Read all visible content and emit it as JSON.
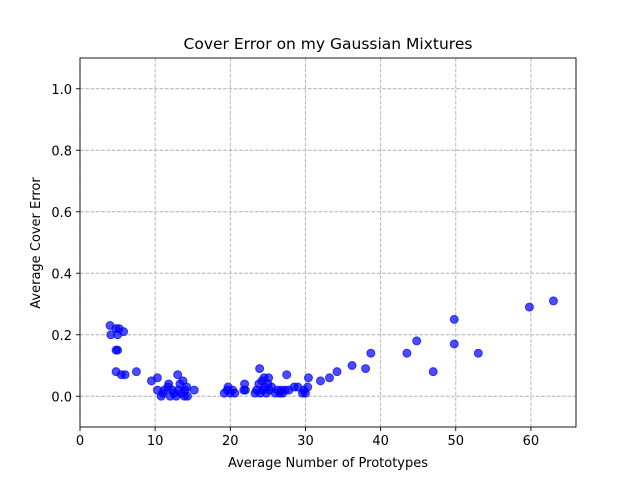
{
  "chart_data": {
    "type": "scatter",
    "title": "Cover Error on my Gaussian Mixtures",
    "xlabel": "Average Number of Prototypes",
    "ylabel": "Average Cover Error",
    "xlim": [
      0,
      66
    ],
    "ylim": [
      -0.1,
      1.1
    ],
    "xticks": [
      0,
      10,
      20,
      30,
      40,
      50,
      60
    ],
    "yticks": [
      0.0,
      0.2,
      0.4,
      0.6,
      0.8,
      1.0
    ],
    "xtick_labels": [
      "0",
      "10",
      "20",
      "30",
      "40",
      "50",
      "60"
    ],
    "ytick_labels": [
      "0.0",
      "0.2",
      "0.4",
      "0.6",
      "0.8",
      "1.0"
    ],
    "grid": true,
    "color": "#0000ff",
    "points": [
      [
        4.0,
        0.23
      ],
      [
        4.1,
        0.2
      ],
      [
        4.8,
        0.22
      ],
      [
        5.0,
        0.2
      ],
      [
        5.2,
        0.22
      ],
      [
        5.8,
        0.21
      ],
      [
        4.8,
        0.15
      ],
      [
        5.0,
        0.15
      ],
      [
        4.8,
        0.08
      ],
      [
        5.5,
        0.07
      ],
      [
        6.0,
        0.07
      ],
      [
        7.5,
        0.08
      ],
      [
        9.5,
        0.05
      ],
      [
        10.3,
        0.06
      ],
      [
        10.3,
        0.02
      ],
      [
        10.8,
        0.0
      ],
      [
        11.0,
        0.01
      ],
      [
        11.2,
        0.02
      ],
      [
        11.7,
        0.03
      ],
      [
        11.8,
        0.04
      ],
      [
        12.0,
        0.0
      ],
      [
        12.3,
        0.02
      ],
      [
        12.5,
        0.01
      ],
      [
        12.8,
        0.0
      ],
      [
        13.0,
        0.07
      ],
      [
        13.1,
        0.02
      ],
      [
        13.3,
        0.04
      ],
      [
        13.5,
        0.01
      ],
      [
        13.7,
        0.05
      ],
      [
        13.9,
        0.0
      ],
      [
        14.0,
        0.02
      ],
      [
        14.2,
        0.03
      ],
      [
        14.3,
        0.0
      ],
      [
        15.2,
        0.02
      ],
      [
        19.2,
        0.01
      ],
      [
        19.6,
        0.02
      ],
      [
        19.7,
        0.03
      ],
      [
        20.0,
        0.01
      ],
      [
        20.3,
        0.02
      ],
      [
        20.6,
        0.01
      ],
      [
        21.8,
        0.02
      ],
      [
        21.9,
        0.04
      ],
      [
        22.0,
        0.02
      ],
      [
        23.3,
        0.01
      ],
      [
        23.5,
        0.02
      ],
      [
        23.8,
        0.04
      ],
      [
        23.9,
        0.09
      ],
      [
        24.0,
        0.01
      ],
      [
        24.2,
        0.05
      ],
      [
        24.3,
        0.02
      ],
      [
        24.5,
        0.06
      ],
      [
        24.6,
        0.03
      ],
      [
        24.8,
        0.01
      ],
      [
        25.0,
        0.04
      ],
      [
        25.1,
        0.06
      ],
      [
        25.2,
        0.02
      ],
      [
        25.5,
        0.03
      ],
      [
        26.0,
        0.01
      ],
      [
        26.3,
        0.02
      ],
      [
        26.6,
        0.01
      ],
      [
        26.8,
        0.02
      ],
      [
        27.0,
        0.01
      ],
      [
        27.3,
        0.02
      ],
      [
        27.5,
        0.07
      ],
      [
        27.8,
        0.02
      ],
      [
        28.5,
        0.03
      ],
      [
        29.0,
        0.03
      ],
      [
        29.6,
        0.01
      ],
      [
        29.8,
        0.02
      ],
      [
        30.0,
        0.01
      ],
      [
        30.3,
        0.03
      ],
      [
        30.4,
        0.06
      ],
      [
        32.0,
        0.05
      ],
      [
        33.2,
        0.06
      ],
      [
        34.2,
        0.08
      ],
      [
        36.2,
        0.1
      ],
      [
        38.0,
        0.09
      ],
      [
        38.7,
        0.14
      ],
      [
        43.5,
        0.14
      ],
      [
        44.8,
        0.18
      ],
      [
        47.0,
        0.08
      ],
      [
        49.8,
        0.25
      ],
      [
        49.8,
        0.17
      ],
      [
        53.0,
        0.14
      ],
      [
        59.8,
        0.29
      ],
      [
        63.0,
        0.31
      ]
    ]
  }
}
